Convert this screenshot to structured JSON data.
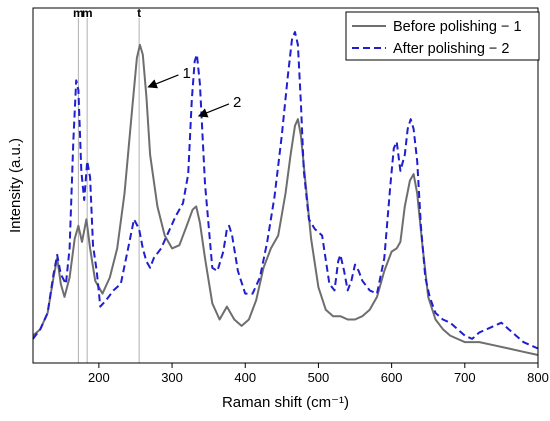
{
  "chart_data": {
    "type": "line",
    "xlabel": "Raman shift (cm⁻¹)",
    "ylabel": "Intensity (a.u.)",
    "xlim": [
      110,
      800
    ],
    "ylim": [
      0,
      1.0
    ],
    "y_ticks_shown": false,
    "x_ticks": [
      200,
      300,
      400,
      500,
      600,
      700,
      800
    ],
    "x_tick_labels": [
      "200",
      "300",
      "400",
      "500",
      "600",
      "700",
      "800"
    ],
    "grid": false,
    "legend_position": "top-right",
    "series": [
      {
        "name": "Before polishing − 1",
        "color": "#6e6e6e",
        "style": "solid",
        "x": [
          110,
          120,
          130,
          138,
          143,
          148,
          153,
          160,
          167,
          172,
          177,
          183,
          188,
          195,
          205,
          215,
          225,
          235,
          245,
          252,
          256,
          260,
          265,
          270,
          280,
          290,
          300,
          310,
          320,
          328,
          333,
          338,
          345,
          355,
          365,
          375,
          385,
          395,
          405,
          415,
          425,
          435,
          445,
          455,
          462,
          468,
          472,
          476,
          482,
          490,
          500,
          510,
          520,
          530,
          540,
          550,
          560,
          570,
          580,
          590,
          600,
          607,
          612,
          618,
          625,
          630,
          635,
          642,
          650,
          660,
          670,
          680,
          690,
          700,
          720,
          740,
          760,
          780,
          800
        ],
        "y": [
          0.06,
          0.08,
          0.13,
          0.24,
          0.3,
          0.22,
          0.18,
          0.24,
          0.36,
          0.4,
          0.35,
          0.42,
          0.33,
          0.23,
          0.19,
          0.24,
          0.33,
          0.5,
          0.75,
          0.92,
          0.96,
          0.93,
          0.8,
          0.62,
          0.46,
          0.37,
          0.33,
          0.34,
          0.4,
          0.45,
          0.46,
          0.41,
          0.3,
          0.16,
          0.11,
          0.15,
          0.11,
          0.09,
          0.11,
          0.17,
          0.27,
          0.33,
          0.37,
          0.5,
          0.62,
          0.71,
          0.73,
          0.68,
          0.54,
          0.36,
          0.21,
          0.14,
          0.12,
          0.12,
          0.11,
          0.11,
          0.12,
          0.14,
          0.18,
          0.26,
          0.32,
          0.33,
          0.35,
          0.46,
          0.54,
          0.56,
          0.5,
          0.34,
          0.18,
          0.11,
          0.08,
          0.06,
          0.05,
          0.04,
          0.04,
          0.03,
          0.02,
          0.01,
          0.0
        ]
      },
      {
        "name": "After polishing − 2",
        "color": "#1f1fcf",
        "style": "dashed",
        "x": [
          110,
          120,
          130,
          138,
          143,
          148,
          155,
          160,
          165,
          169,
          172,
          176,
          180,
          184,
          188,
          192,
          197,
          202,
          210,
          220,
          230,
          240,
          248,
          255,
          260,
          265,
          270,
          275,
          285,
          295,
          305,
          315,
          322,
          327,
          331,
          334,
          338,
          345,
          355,
          362,
          370,
          375,
          378,
          382,
          390,
          400,
          410,
          420,
          430,
          440,
          450,
          458,
          464,
          468,
          472,
          476,
          480,
          487,
          495,
          505,
          515,
          522,
          527,
          530,
          535,
          540,
          545,
          550,
          555,
          560,
          570,
          580,
          590,
          598,
          603,
          607,
          612,
          618,
          622,
          626,
          630,
          635,
          640,
          646,
          652,
          660,
          670,
          680,
          690,
          700,
          710,
          720,
          730,
          740,
          750,
          760,
          770,
          780,
          790,
          800
        ],
        "y": [
          0.05,
          0.08,
          0.13,
          0.25,
          0.31,
          0.25,
          0.22,
          0.33,
          0.66,
          0.85,
          0.82,
          0.57,
          0.48,
          0.6,
          0.55,
          0.34,
          0.26,
          0.15,
          0.17,
          0.2,
          0.22,
          0.33,
          0.42,
          0.39,
          0.33,
          0.29,
          0.27,
          0.3,
          0.33,
          0.38,
          0.43,
          0.47,
          0.56,
          0.79,
          0.91,
          0.93,
          0.84,
          0.53,
          0.27,
          0.26,
          0.32,
          0.39,
          0.4,
          0.37,
          0.26,
          0.19,
          0.19,
          0.24,
          0.35,
          0.49,
          0.68,
          0.86,
          0.98,
          1.0,
          0.96,
          0.78,
          0.57,
          0.42,
          0.39,
          0.37,
          0.22,
          0.2,
          0.29,
          0.31,
          0.26,
          0.2,
          0.23,
          0.28,
          0.26,
          0.23,
          0.2,
          0.19,
          0.3,
          0.52,
          0.64,
          0.66,
          0.57,
          0.62,
          0.7,
          0.73,
          0.7,
          0.6,
          0.4,
          0.24,
          0.18,
          0.13,
          0.11,
          0.1,
          0.08,
          0.06,
          0.05,
          0.07,
          0.08,
          0.09,
          0.1,
          0.08,
          0.06,
          0.04,
          0.03,
          0.02
        ]
      }
    ],
    "markers": [
      {
        "label": "m",
        "x": 172
      },
      {
        "label": "m",
        "x": 184
      },
      {
        "label": "t",
        "x": 255
      }
    ],
    "annotations": [
      {
        "text": "1",
        "series": 0,
        "x": 265,
        "y": 0.83
      },
      {
        "text": "2",
        "series": 1,
        "x": 334,
        "y": 0.74
      }
    ]
  }
}
